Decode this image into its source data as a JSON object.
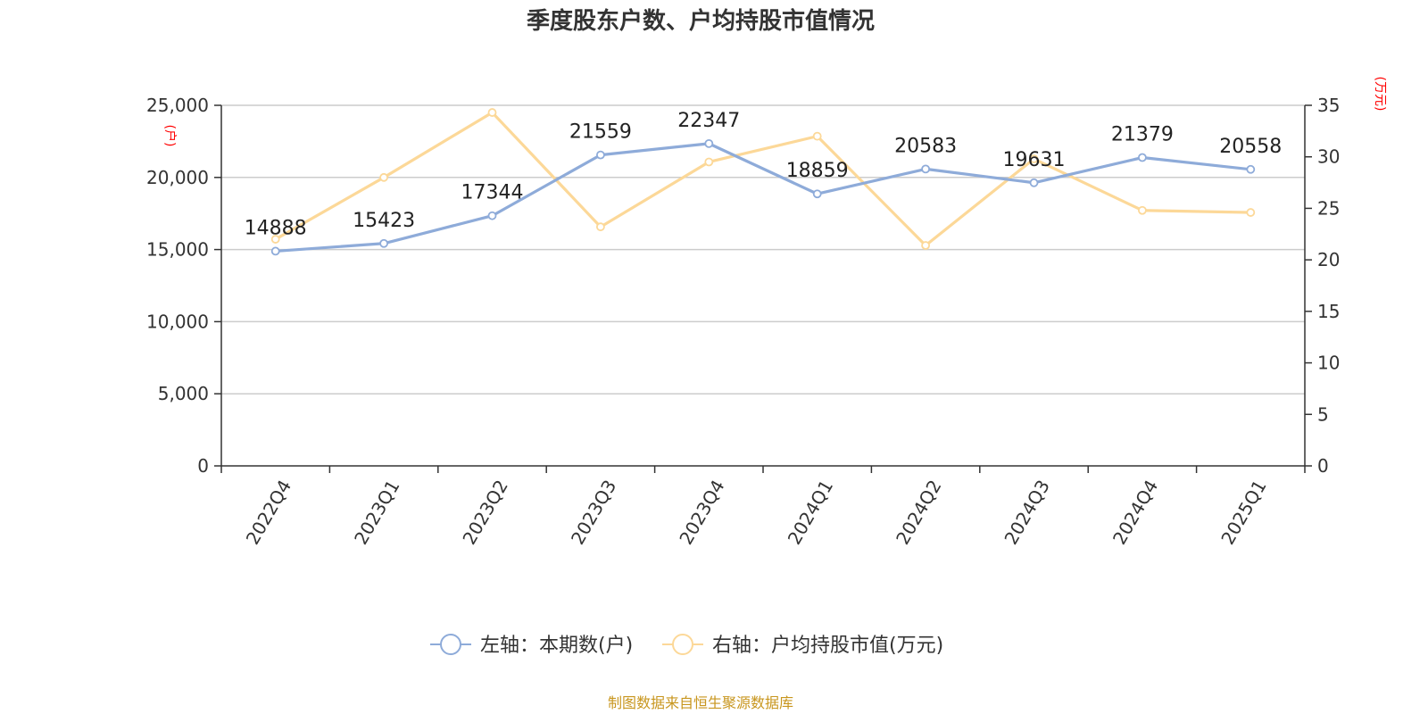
{
  "chart_data": {
    "type": "line",
    "title": "季度股东户数、户均持股市值情况",
    "categories": [
      "2022Q4",
      "2023Q1",
      "2023Q2",
      "2023Q3",
      "2023Q4",
      "2024Q1",
      "2024Q2",
      "2024Q3",
      "2024Q4",
      "2025Q1"
    ],
    "left_axis": {
      "unit": "(户)",
      "ylim": [
        0,
        25000
      ],
      "ticks": [
        "0",
        "5,000",
        "10,000",
        "15,000",
        "20,000",
        "25,000"
      ],
      "tick_values": [
        0,
        5000,
        10000,
        15000,
        20000,
        25000
      ]
    },
    "right_axis": {
      "unit": "(万元)",
      "ylim": [
        0,
        35
      ],
      "ticks": [
        "0",
        "5",
        "10",
        "15",
        "20",
        "25",
        "30",
        "35"
      ],
      "tick_values": [
        0,
        5,
        10,
        15,
        20,
        25,
        30,
        35
      ]
    },
    "grid": true,
    "legend_position": "bottom",
    "series": [
      {
        "name": "左轴：本期数(户)",
        "axis": "left",
        "color": "#8eabd9",
        "values": [
          14888,
          15423,
          17344,
          21559,
          22347,
          18859,
          20583,
          19631,
          21379,
          20558
        ],
        "labels": [
          "14888",
          "15423",
          "17344",
          "21559",
          "22347",
          "18859",
          "20583",
          "19631",
          "21379",
          "20558"
        ]
      },
      {
        "name": "右轴：户均持股市值(万元)",
        "axis": "right",
        "color": "#fcd898",
        "values": [
          22.0,
          28.0,
          34.3,
          23.2,
          29.5,
          32.0,
          21.4,
          29.8,
          24.8,
          24.6
        ]
      }
    ],
    "source": "制图数据来自恒生聚源数据库"
  }
}
